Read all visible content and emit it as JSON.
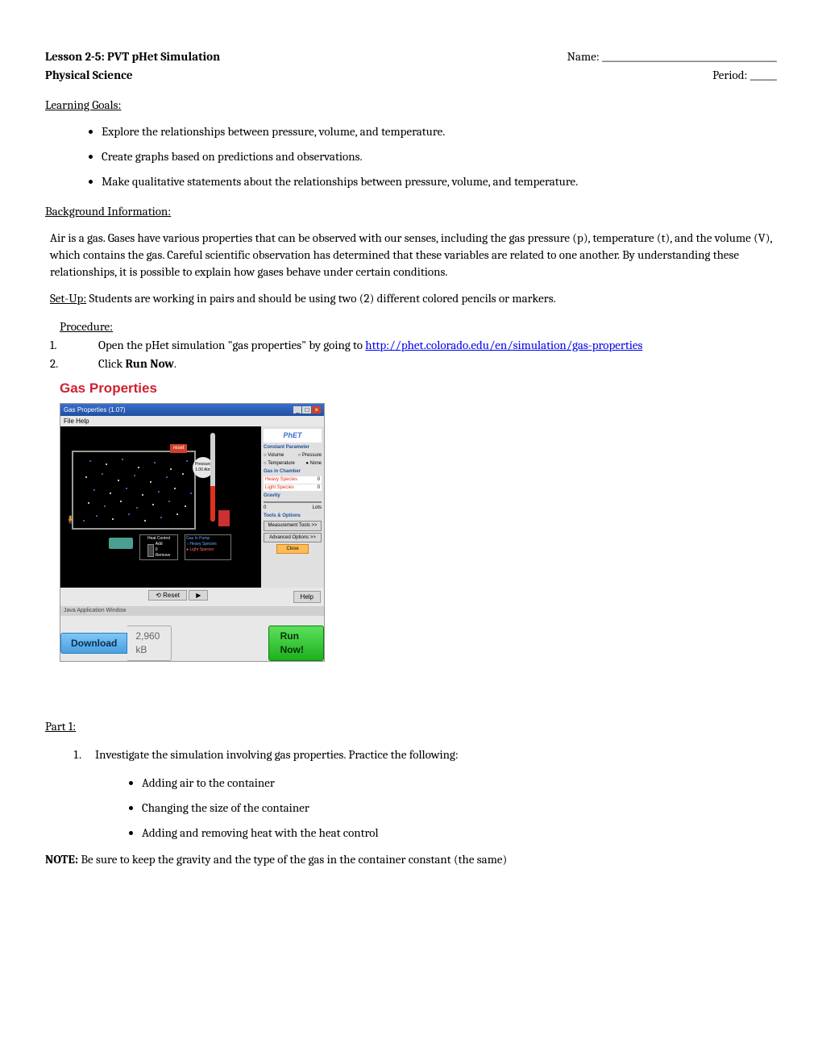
{
  "header": {
    "title_left1": "Lesson 2-5: PVT pHet Simulation",
    "title_left2": "Physical Science",
    "name_label": "Name: _______________________________________",
    "period_label": "Period: ______"
  },
  "learning_goals": {
    "heading": "Learning Goals:",
    "items": [
      "Explore the relationships between pressure, volume, and  temperature.",
      "Create graphs based on predictions and observations.",
      "Make qualitative statements about the relationships between pressure, volume, and temperature."
    ]
  },
  "background": {
    "heading": "Background Information:",
    "text": "Air is a gas. Gases have various properties that can be observed with our senses, including the gas pressure (p), temperature (t), and the volume (V), which contains the gas. Careful scientific observation has determined that these variables are related to one another. By understanding these relationships, it is possible to explain how gases behave under certain conditions."
  },
  "setup": {
    "label": "Set-Up:",
    "text": " Students are working in pairs and should be using two (2) different colored pencils or markers."
  },
  "procedure": {
    "heading": "Procedure:",
    "step1_num": "1.",
    "step1_a": "Open the pHet simulation \"gas properties\" by going to ",
    "step1_link": "http://phet.colorado.edu/en/simulation/gas-properties",
    "step2_num": "2.",
    "step2_a": "Click ",
    "step2_b": "Run Now",
    "step2_c": "."
  },
  "sim": {
    "title": "Gas Properties",
    "window_title": "Gas Properties (1.07)",
    "menu": "File   Help",
    "logo": "PhET",
    "side": {
      "constant_label": "Constant Parameter",
      "opt_volume": "Volume",
      "opt_pressure": "Pressure",
      "opt_temp": "Temperature",
      "opt_none": "None",
      "gas_label": "Gas in Chamber",
      "heavy": "Heavy Species",
      "light": "Light Species",
      "gravity_label": "Gravity",
      "grav_0": "0",
      "grav_lots": "Lots",
      "tools_label": "Tools & Options",
      "meas_btn": "Measurement Tools >>",
      "adv_btn": "Advanced Options >>",
      "close_btn": "Close"
    },
    "reset": "reset",
    "gauge_label": "Pressure",
    "gauge_val": "1.00 Atm",
    "heat_ctrl": "Heat Control",
    "heat_add": "Add",
    "heat_0": "0",
    "heat_remove": "Remove",
    "gas_panel": "Gas In Pump",
    "gas_heavy": "Heavy Species",
    "gas_light": "Light Species",
    "bottom_reset": "Reset",
    "bottom_play": "▶",
    "bottom_help": "Help",
    "java": "Java Application Window",
    "download": "Download",
    "size": "2,960 kB",
    "run": "Run Now!"
  },
  "part1": {
    "heading": "Part 1:",
    "step1": "Investigate the simulation involving gas properties.  Practice the following:",
    "subs": [
      "Adding air to the  container",
      "Changing the size of the  container",
      "Adding and removing heat with the heat control"
    ],
    "note_label": "NOTE:",
    "note_text": "   Be sure to keep the gravity and the type of the gas in the container constant (the same)"
  },
  "particles": {
    "blue": "#5a7aff",
    "white": "#ffffff",
    "positions": [
      [
        20,
        10,
        "b"
      ],
      [
        40,
        14,
        "w"
      ],
      [
        60,
        8,
        "b"
      ],
      [
        80,
        18,
        "w"
      ],
      [
        100,
        12,
        "b"
      ],
      [
        120,
        20,
        "w"
      ],
      [
        140,
        10,
        "b"
      ],
      [
        15,
        30,
        "w"
      ],
      [
        35,
        26,
        "b"
      ],
      [
        55,
        34,
        "w"
      ],
      [
        75,
        28,
        "b"
      ],
      [
        95,
        36,
        "w"
      ],
      [
        115,
        30,
        "b"
      ],
      [
        135,
        26,
        "w"
      ],
      [
        25,
        46,
        "b"
      ],
      [
        45,
        50,
        "w"
      ],
      [
        65,
        44,
        "b"
      ],
      [
        85,
        52,
        "w"
      ],
      [
        105,
        48,
        "b"
      ],
      [
        125,
        44,
        "w"
      ],
      [
        145,
        50,
        "b"
      ],
      [
        18,
        62,
        "w"
      ],
      [
        38,
        66,
        "b"
      ],
      [
        58,
        60,
        "w"
      ],
      [
        78,
        68,
        "b"
      ],
      [
        98,
        64,
        "w"
      ],
      [
        118,
        60,
        "b"
      ],
      [
        138,
        66,
        "w"
      ],
      [
        28,
        78,
        "b"
      ],
      [
        48,
        82,
        "w"
      ],
      [
        68,
        76,
        "b"
      ],
      [
        88,
        84,
        "w"
      ],
      [
        108,
        80,
        "b"
      ],
      [
        128,
        76,
        "w"
      ],
      [
        12,
        84,
        "b"
      ]
    ]
  }
}
